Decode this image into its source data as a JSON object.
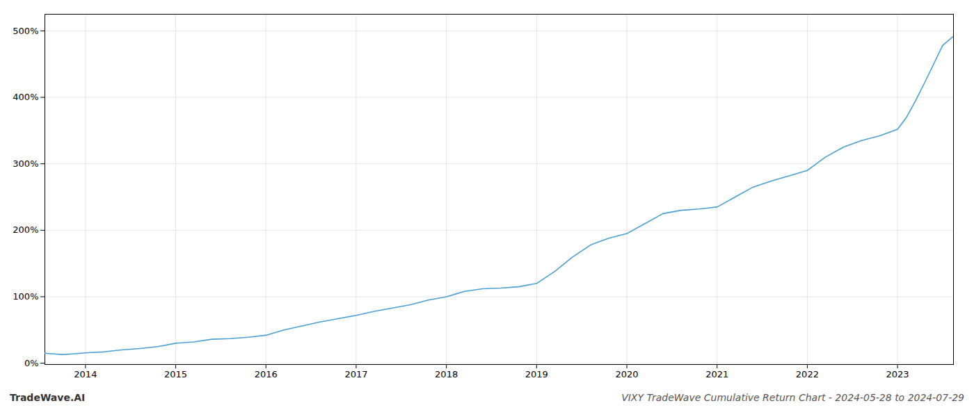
{
  "chart_data": {
    "type": "line",
    "title": "VIXY TradeWave Cumulative Return Chart - 2024-05-28 to 2024-07-29",
    "annotations": [
      "TradeWave.AI"
    ],
    "color": "#4a9fd4",
    "grid": true,
    "xlim": [
      2013.55,
      2023.62
    ],
    "ylim": [
      -0.02,
      5.25
    ],
    "xticks": [
      2014,
      2015,
      2016,
      2017,
      2018,
      2019,
      2020,
      2021,
      2022,
      2023
    ],
    "yticks": [
      {
        "value": 0,
        "label": "0%"
      },
      {
        "value": 1,
        "label": "100%"
      },
      {
        "value": 2,
        "label": "200%"
      },
      {
        "value": 3,
        "label": "300%"
      },
      {
        "value": 4,
        "label": "400%"
      },
      {
        "value": 5,
        "label": "500%"
      }
    ],
    "x": [
      2013.55,
      2013.65,
      2013.75,
      2013.85,
      2013.95,
      2014.05,
      2014.2,
      2014.4,
      2014.6,
      2014.8,
      2015.0,
      2015.2,
      2015.4,
      2015.6,
      2015.8,
      2016.0,
      2016.2,
      2016.4,
      2016.6,
      2016.8,
      2017.0,
      2017.2,
      2017.4,
      2017.6,
      2017.8,
      2018.0,
      2018.1,
      2018.2,
      2018.4,
      2018.6,
      2018.8,
      2019.0,
      2019.2,
      2019.4,
      2019.6,
      2019.8,
      2020.0,
      2020.2,
      2020.4,
      2020.6,
      2020.8,
      2021.0,
      2021.2,
      2021.4,
      2021.6,
      2021.8,
      2022.0,
      2022.1,
      2022.2,
      2022.4,
      2022.6,
      2022.8,
      2023.0,
      2023.1,
      2023.2,
      2023.3,
      2023.4,
      2023.5,
      2023.62
    ],
    "values": [
      0.15,
      0.14,
      0.13,
      0.14,
      0.15,
      0.16,
      0.17,
      0.2,
      0.22,
      0.25,
      0.3,
      0.32,
      0.36,
      0.37,
      0.39,
      0.42,
      0.5,
      0.56,
      0.62,
      0.67,
      0.72,
      0.78,
      0.83,
      0.88,
      0.95,
      1.0,
      1.04,
      1.08,
      1.12,
      1.13,
      1.15,
      1.2,
      1.38,
      1.6,
      1.78,
      1.88,
      1.95,
      2.1,
      2.25,
      2.3,
      2.32,
      2.35,
      2.5,
      2.65,
      2.74,
      2.82,
      2.9,
      3.0,
      3.1,
      3.25,
      3.35,
      3.42,
      3.52,
      3.7,
      3.95,
      4.22,
      4.5,
      4.78,
      4.92
    ]
  }
}
